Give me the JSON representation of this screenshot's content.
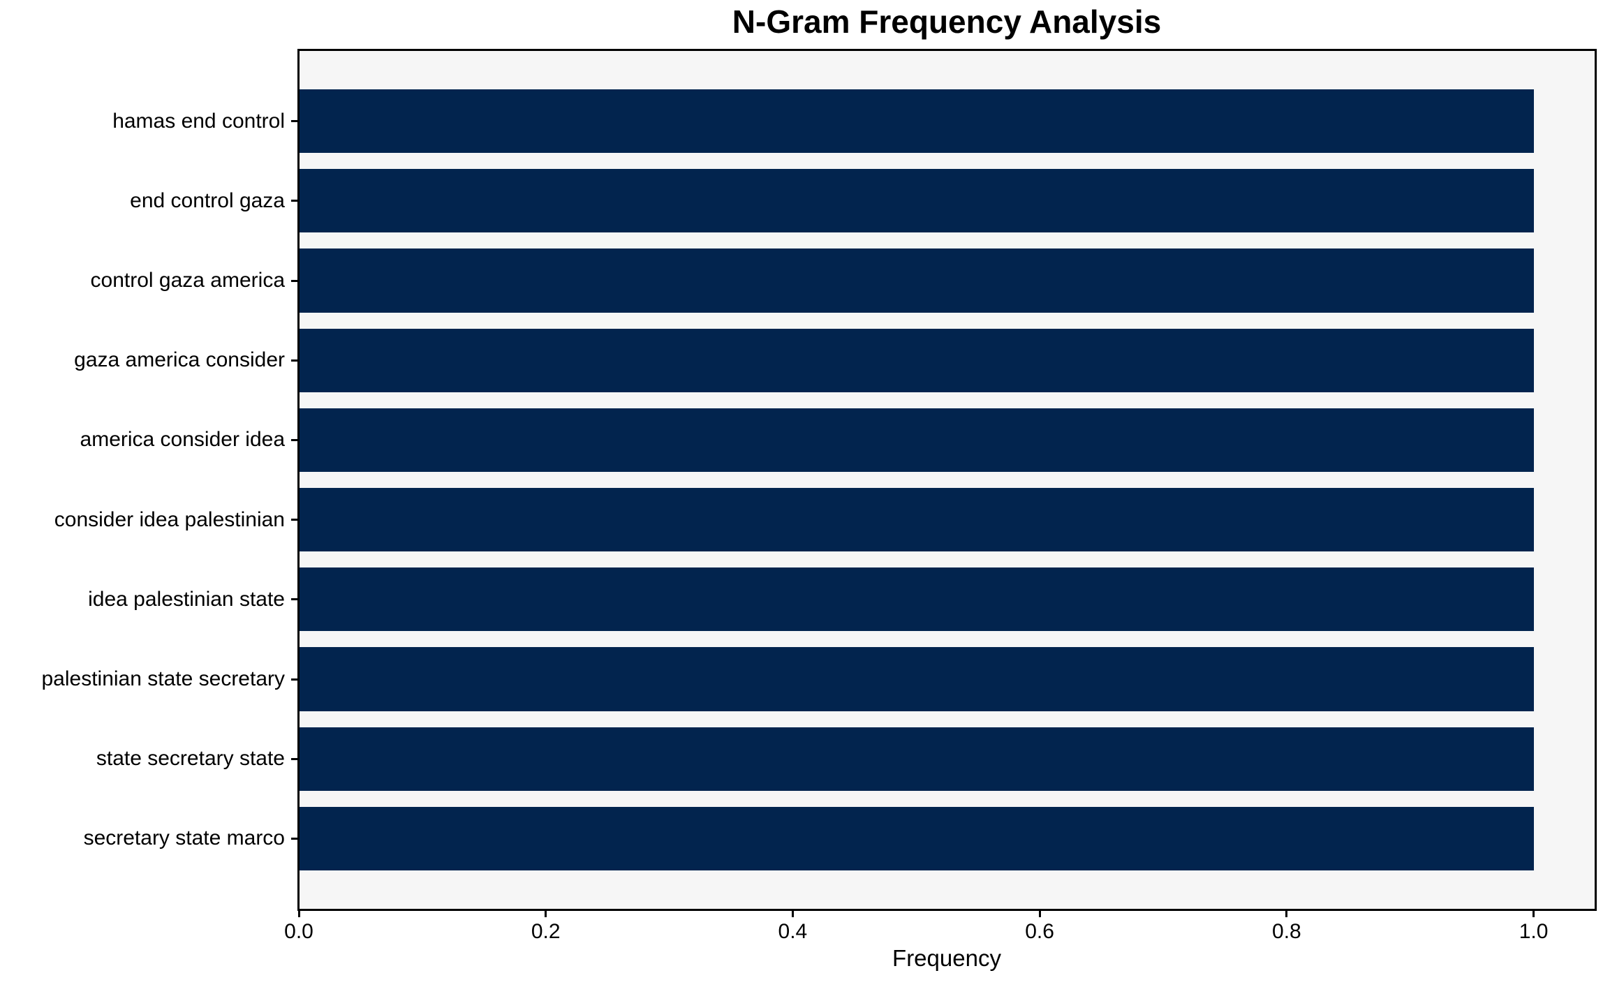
{
  "chart_data": {
    "type": "bar",
    "orientation": "horizontal",
    "title": "N-Gram Frequency Analysis",
    "xlabel": "Frequency",
    "ylabel": "",
    "categories": [
      "hamas end control",
      "end control gaza",
      "control gaza america",
      "gaza america consider",
      "america consider idea",
      "consider idea palestinian",
      "idea palestinian state",
      "palestinian state secretary",
      "state secretary state",
      "secretary state marco"
    ],
    "values": [
      1.0,
      1.0,
      1.0,
      1.0,
      1.0,
      1.0,
      1.0,
      1.0,
      1.0,
      1.0
    ],
    "xlim": [
      0.0,
      1.05
    ],
    "xticks": [
      0.0,
      0.2,
      0.4,
      0.6,
      0.8,
      1.0
    ],
    "xtick_labels": [
      "0.0",
      "0.2",
      "0.4",
      "0.6",
      "0.8",
      "1.0"
    ],
    "grid": false,
    "legend": null,
    "colors": {
      "bar": "#02244e",
      "plot_background": "#f6f6f6",
      "figure_background": "#ffffff",
      "spine": "#000000",
      "text": "#000000"
    }
  }
}
